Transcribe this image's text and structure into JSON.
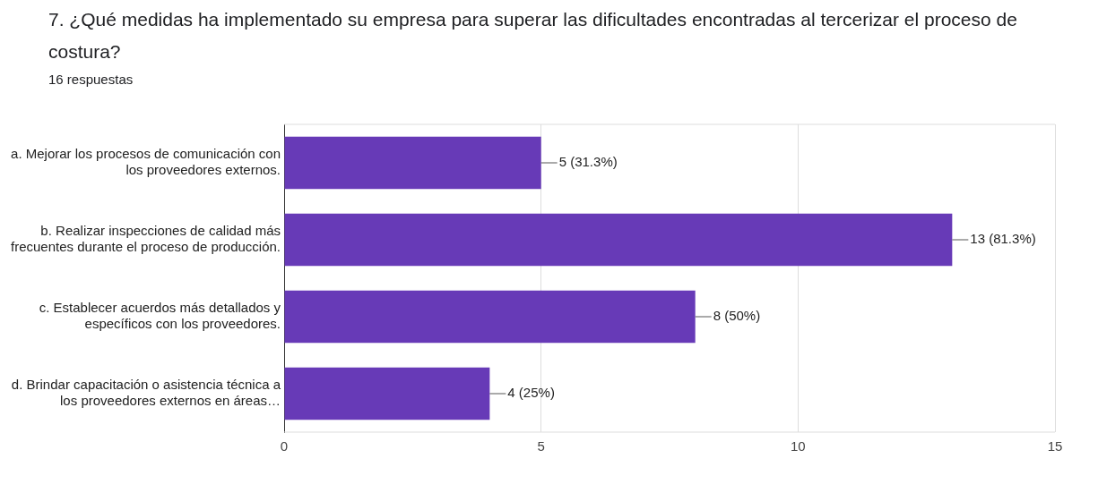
{
  "chart_data": {
    "type": "bar",
    "orientation": "horizontal",
    "title": "7.    ¿Qué medidas ha implementado su empresa para superar las dificultades encontradas al tercerizar el proceso de costura?",
    "subtitle": "16 respuestas",
    "categories": [
      "a. Mejorar los procesos de comunicación con los proveedores externos.",
      "b. Realizar inspecciones de calidad más frecuentes durante el proceso de producción.",
      "c. Establecer acuerdos más detallados y específicos con los proveedores.",
      "d. Brindar capacitación o asistencia técnica a los proveedores externos en áreas…"
    ],
    "values": [
      5,
      13,
      8,
      4
    ],
    "value_labels": [
      "5 (31.3%)",
      "13 (81.3%)",
      "8 (50%)",
      "4 (25%)"
    ],
    "color": "#673ab7",
    "xlim": [
      0,
      15
    ],
    "xticks": [
      0,
      5,
      10,
      15
    ],
    "grid": "x",
    "legend": false
  }
}
